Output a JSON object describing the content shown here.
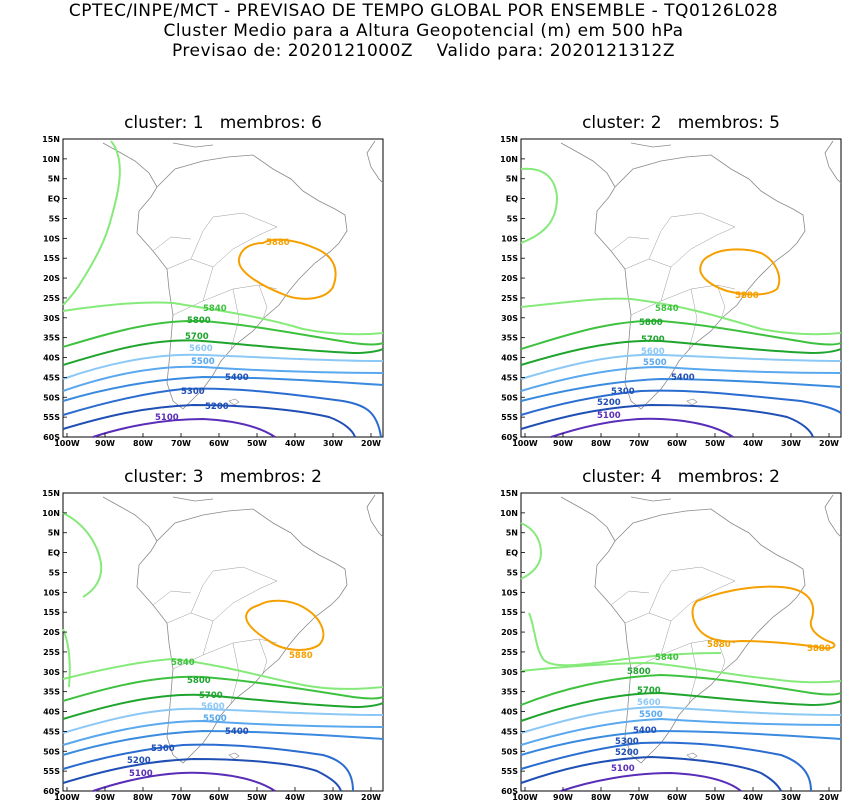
{
  "header": {
    "line1": "CPTEC/INPE/MCT - PREVISAO DE TEMPO GLOBAL POR ENSEMBLE - TQ0126L028",
    "line2": "Cluster Medio para a Altura Geopotencial (m) em 500 hPa",
    "line3": "Previsao de: 2020121000Z    Valido para: 2020121312Z"
  },
  "lat_ticks": [
    "15N",
    "10N",
    "5N",
    "EQ",
    "5S",
    "10S",
    "15S",
    "20S",
    "25S",
    "30S",
    "35S",
    "40S",
    "45S",
    "50S",
    "55S",
    "60S"
  ],
  "lon_ticks": [
    "100W",
    "90W",
    "80W",
    "70W",
    "60W",
    "50W",
    "40W",
    "30W",
    "20W"
  ],
  "colors": {
    "c5100": "#5a2db8",
    "c5200": "#1f4fb4",
    "c5300": "#2a6cd0",
    "c5400": "#3a8ae0",
    "c5500": "#5aa8ee",
    "c5600": "#8cc8f5",
    "c5700": "#1fa42e",
    "c5800": "#3ec13f",
    "c5840": "#86ea7a",
    "c5880": "#f5a000",
    "coast": "#8a8a8a"
  },
  "clusters": [
    {
      "title": "cluster: 1   membros: 6",
      "labels": {
        "l5880": "5880",
        "l5840": "5840",
        "l5800": "5800",
        "l5700": "5700",
        "l5600": "5600",
        "l5500": "5500",
        "l5400": "5400",
        "l5300": "5300",
        "l5200": "5200",
        "l5100": "5100"
      }
    },
    {
      "title": "cluster: 2   membros: 5",
      "labels": {
        "l5880": "5880",
        "l5840": "5840",
        "l5800": "5800",
        "l5700": "5700",
        "l5600": "5600",
        "l5500": "5500",
        "l5400": "5400",
        "l5300": "5300",
        "l5200": "5200",
        "l5100": "5100"
      }
    },
    {
      "title": "cluster: 3   membros: 2",
      "labels": {
        "l5880": "5880",
        "l5840": "5840",
        "l5800": "5800",
        "l5700": "5700",
        "l5600": "5600",
        "l5500": "5500",
        "l5400": "5400",
        "l5300": "5300",
        "l5200": "5200",
        "l5100": "5100"
      }
    },
    {
      "title": "cluster: 4   membros: 2",
      "labels": {
        "l5880a": "5880",
        "l5880b": "5880",
        "l5840": "5840",
        "l5800": "5800",
        "l5700": "5700",
        "l5600": "5600",
        "l5500": "5500",
        "l5400": "5400",
        "l5300": "5300",
        "l5200": "5200",
        "l5100": "5100"
      }
    }
  ]
}
